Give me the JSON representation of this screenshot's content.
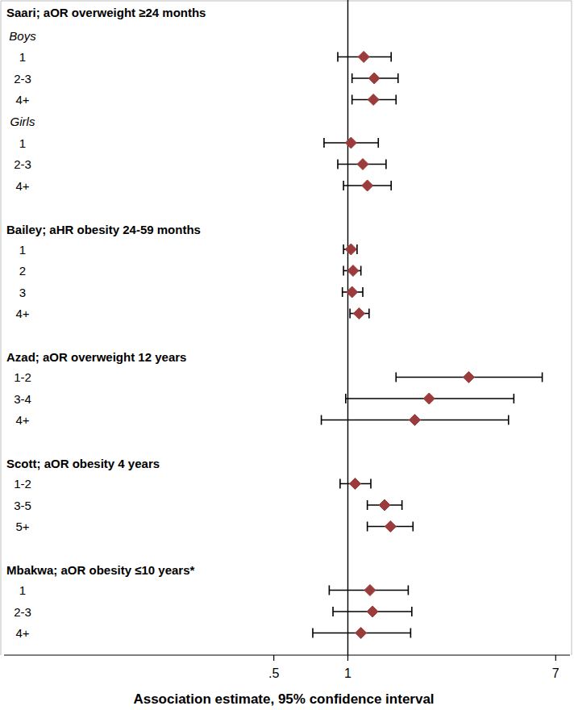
{
  "chart_data": {
    "type": "forest",
    "x_label": "Association estimate, 95% confidence interval",
    "log": "x",
    "xlim": [
      0.04,
      8
    ],
    "xticks": [
      {
        "value": 0.5,
        "label": ".5"
      },
      1,
      7
    ],
    "reference": 1,
    "color": "#9b3b3b",
    "groups": [
      {
        "title": "Saari; aOR overweight ≥24 months",
        "subgroups": [
          {
            "label": "Boys",
            "rows": [
              {
                "label": "1",
                "value": 1.16,
                "ci": [
                  0.91,
                  1.5
                ]
              },
              {
                "label": "2-3",
                "value": 1.28,
                "ci": [
                  1.04,
                  1.6
                ]
              },
              {
                "label": "4+",
                "value": 1.27,
                "ci": [
                  1.04,
                  1.57
                ]
              }
            ]
          },
          {
            "label": "Girls",
            "rows": [
              {
                "label": "1",
                "value": 1.03,
                "ci": [
                  0.8,
                  1.33
                ]
              },
              {
                "label": "2-3",
                "value": 1.15,
                "ci": [
                  0.91,
                  1.43
                ]
              },
              {
                "label": "4+",
                "value": 1.2,
                "ci": [
                  0.96,
                  1.5
                ]
              }
            ]
          }
        ]
      },
      {
        "title": "Bailey; aHR obesity 24-59 months",
        "rows": [
          {
            "label": "1",
            "value": 1.03,
            "ci": [
              0.96,
              1.09
            ]
          },
          {
            "label": "2",
            "value": 1.05,
            "ci": [
              0.96,
              1.13
            ]
          },
          {
            "label": "3",
            "value": 1.04,
            "ci": [
              0.95,
              1.15
            ]
          },
          {
            "label": "4+",
            "value": 1.11,
            "ci": [
              1.02,
              1.22
            ]
          }
        ]
      },
      {
        "title": "Azad; aOR overweight 12 years",
        "rows": [
          {
            "label": "1-2",
            "value": 3.1,
            "ci": [
              1.57,
              6.17
            ]
          },
          {
            "label": "3-4",
            "value": 2.14,
            "ci": [
              0.98,
              4.73
            ]
          },
          {
            "label": "4+",
            "value": 1.87,
            "ci": [
              0.78,
              4.5
            ]
          }
        ]
      },
      {
        "title": "Scott; aOR obesity 4 years",
        "rows": [
          {
            "label": "1-2",
            "value": 1.07,
            "ci": [
              0.93,
              1.24
            ]
          },
          {
            "label": "3-5",
            "value": 1.41,
            "ci": [
              1.2,
              1.66
            ]
          },
          {
            "label": "5+",
            "value": 1.49,
            "ci": [
              1.2,
              1.84
            ]
          }
        ]
      },
      {
        "title": "Mbakwa; aOR obesity ≤10 years*",
        "rows": [
          {
            "label": "1",
            "value": 1.23,
            "ci": [
              0.84,
              1.76
            ]
          },
          {
            "label": "2-3",
            "value": 1.26,
            "ci": [
              0.87,
              1.82
            ]
          },
          {
            "label": "4+",
            "value": 1.13,
            "ci": [
              0.72,
              1.8
            ]
          }
        ]
      }
    ]
  }
}
